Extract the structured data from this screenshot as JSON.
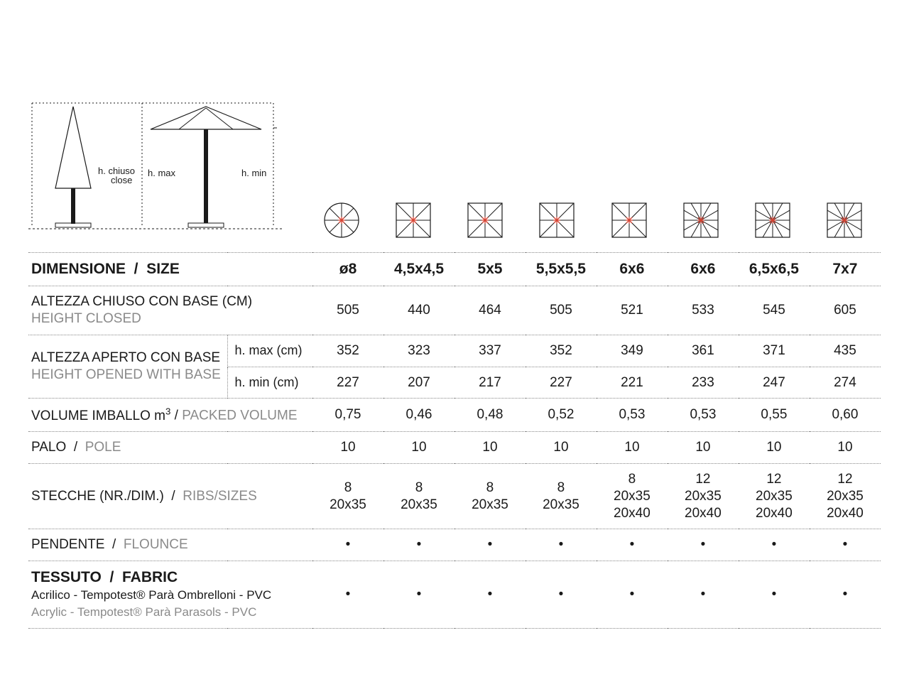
{
  "diagram": {
    "labels": {
      "h_chiuso": "h. chiuso",
      "h_chiuso_en": "close",
      "h_max": "h. max",
      "h_min": "h. min"
    },
    "stroke": "#1a1a1a",
    "text_color": "#1a1a1a",
    "font_size": 13
  },
  "icons": {
    "configs": [
      {
        "shape": "circle",
        "ribs": 8
      },
      {
        "shape": "square",
        "ribs": 8
      },
      {
        "shape": "square",
        "ribs": 8
      },
      {
        "shape": "square",
        "ribs": 8
      },
      {
        "shape": "square",
        "ribs": 8
      },
      {
        "shape": "square",
        "ribs": 12
      },
      {
        "shape": "square",
        "ribs": 12
      },
      {
        "shape": "square",
        "ribs": 12
      }
    ],
    "stroke": "#1a1a1a",
    "hub_color": "#d94434",
    "size": 50
  },
  "table": {
    "header": {
      "label_it": "DIMENSIONE",
      "label_en": "SIZE",
      "sizes": [
        "ø8",
        "4,5x4,5",
        "5x5",
        "5,5x5,5",
        "6x6",
        "6x6",
        "6,5x6,5",
        "7x7"
      ]
    },
    "rows": {
      "height_closed": {
        "label_it": "ALTEZZA CHIUSO CON BASE (CM)",
        "label_en": "HEIGHT CLOSED",
        "values": [
          "505",
          "440",
          "464",
          "505",
          "521",
          "533",
          "545",
          "605"
        ]
      },
      "height_opened": {
        "label_it": "ALTEZZA APERTO CON BASE",
        "label_en": "HEIGHT OPENED WITH BASE",
        "sub_max_label": "h. max (cm)",
        "sub_min_label": "h. min (cm)",
        "values_max": [
          "352",
          "323",
          "337",
          "352",
          "349",
          "361",
          "371",
          "435"
        ],
        "values_min": [
          "227",
          "207",
          "217",
          "227",
          "221",
          "233",
          "247",
          "274"
        ]
      },
      "packed_volume": {
        "label_it": "VOLUME IMBALLO m³",
        "label_en": "PACKED VOLUME",
        "values": [
          "0,75",
          "0,46",
          "0,48",
          "0,52",
          "0,53",
          "0,53",
          "0,55",
          "0,60"
        ]
      },
      "pole": {
        "label_it": "PALO",
        "label_en": "POLE",
        "values": [
          "10",
          "10",
          "10",
          "10",
          "10",
          "10",
          "10",
          "10"
        ]
      },
      "ribs": {
        "label_it": "STECCHE (NR./DIM.)",
        "label_en": "RIBS/SIZES",
        "values": [
          [
            "8",
            "20x35"
          ],
          [
            "8",
            "20x35"
          ],
          [
            "8",
            "20x35"
          ],
          [
            "8",
            "20x35"
          ],
          [
            "8",
            "20x35",
            "20x40"
          ],
          [
            "12",
            "20x35",
            "20x40"
          ],
          [
            "12",
            "20x35",
            "20x40"
          ],
          [
            "12",
            "20x35",
            "20x40"
          ]
        ]
      },
      "flounce": {
        "label_it": "PENDENTE",
        "label_en": "FLOUNCE",
        "values": [
          "•",
          "•",
          "•",
          "•",
          "•",
          "•",
          "•",
          "•"
        ]
      },
      "fabric": {
        "label_it": "TESSUTO",
        "label_en": "FABRIC",
        "sub_it": "Acrilico - Tempotest® Parà Ombrelloni - PVC",
        "sub_en": "Acrylic - Tempotest® Parà Parasols - PVC",
        "values": [
          "•",
          "•",
          "•",
          "•",
          "•",
          "•",
          "•",
          "•"
        ]
      }
    }
  },
  "colors": {
    "text_primary": "#1a1a1a",
    "text_secondary": "#8a8a8a",
    "border": "#888888",
    "background": "#ffffff"
  },
  "typography": {
    "cell_font_size": 19,
    "header_font_size": 21,
    "sub_font_size": 17
  }
}
